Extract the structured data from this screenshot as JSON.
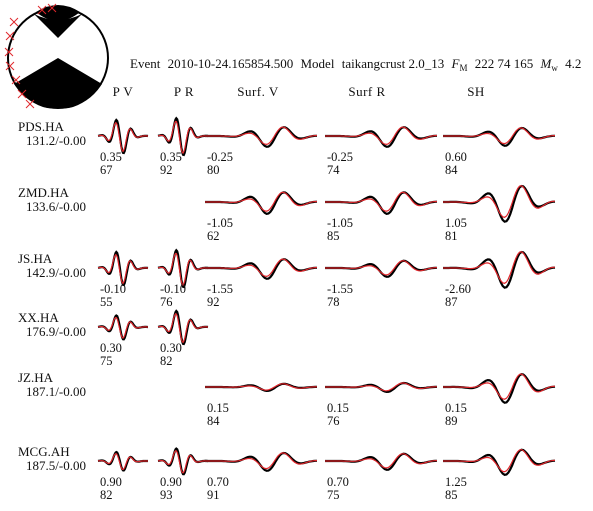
{
  "header": {
    "event_label": "Event",
    "event_id": "2010-10-24.165854.500",
    "model_label": "Model",
    "model_name": "taikangcrust 2.0_13",
    "fm_symbol": "F",
    "fm_sub": "M",
    "fm_values": "222 74 165",
    "mw_symbol": "M",
    "mw_sub": "w",
    "mw_value": "4.2"
  },
  "colors": {
    "observed": "#000000",
    "synthetic": "#e0262b",
    "axis": "#888888",
    "beachball_fill": "#000000",
    "station_marker": "#e0262b"
  },
  "chart_data": {
    "type": "line",
    "title": "Event 2010-10-24.165854.500 Model taikangcrust 2.0_13 FM 222 74 165 Mw 4.2",
    "xlabel": "",
    "ylabel": "",
    "grid": false,
    "legend": "none",
    "components": [
      "P V",
      "P R",
      "Surf. V",
      "Surf R",
      "SH"
    ],
    "series": [
      {
        "name": "observed",
        "color": "#000000"
      },
      {
        "name": "synthetic",
        "color": "#e0262b"
      }
    ],
    "stations": [
      {
        "name": "PDS.HA",
        "info": "131.2/-0.00",
        "windows": [
          {
            "comp": "P V",
            "present": true,
            "shift": "0.35",
            "cc": "67",
            "amp": 0.9,
            "style": "p"
          },
          {
            "comp": "P R",
            "present": true,
            "shift": "0.35",
            "cc": "92",
            "amp": 1.0,
            "style": "p"
          },
          {
            "comp": "Surf. V",
            "present": true,
            "shift": "-0.25",
            "cc": "80",
            "amp": 0.55,
            "style": "s"
          },
          {
            "comp": "Surf R",
            "present": true,
            "shift": "-0.25",
            "cc": "74",
            "amp": 0.55,
            "style": "s"
          },
          {
            "comp": "SH",
            "present": true,
            "shift": "0.60",
            "cc": "84",
            "amp": 0.5,
            "style": "s"
          }
        ]
      },
      {
        "name": "ZMD.HA",
        "info": "133.6/-0.00",
        "windows": [
          {
            "comp": "P V",
            "present": false
          },
          {
            "comp": "P R",
            "present": false
          },
          {
            "comp": "Surf. V",
            "present": true,
            "shift": "-1.05",
            "cc": "62",
            "amp": 0.6,
            "style": "s"
          },
          {
            "comp": "Surf R",
            "present": true,
            "shift": "-1.05",
            "cc": "85",
            "amp": 0.6,
            "style": "s"
          },
          {
            "comp": "SH",
            "present": true,
            "shift": "1.05",
            "cc": "81",
            "amp": 1.0,
            "style": "s"
          }
        ]
      },
      {
        "name": "JS.HA",
        "info": "142.9/-0.00",
        "windows": [
          {
            "comp": "P V",
            "present": true,
            "shift": "-0.10",
            "cc": "55",
            "amp": 0.9,
            "style": "p"
          },
          {
            "comp": "P R",
            "present": true,
            "shift": "-0.10",
            "cc": "76",
            "amp": 1.0,
            "style": "p"
          },
          {
            "comp": "Surf. V",
            "present": true,
            "shift": "-1.55",
            "cc": "92",
            "amp": 0.55,
            "style": "s"
          },
          {
            "comp": "Surf R",
            "present": true,
            "shift": "-1.55",
            "cc": "78",
            "amp": 0.45,
            "style": "s"
          },
          {
            "comp": "SH",
            "present": true,
            "shift": "-2.60",
            "cc": "87",
            "amp": 1.0,
            "style": "s"
          }
        ]
      },
      {
        "name": "XX.HA",
        "info": "176.9/-0.00",
        "windows": [
          {
            "comp": "P V",
            "present": true,
            "shift": "0.30",
            "cc": "75",
            "amp": 0.65,
            "style": "p"
          },
          {
            "comp": "P R",
            "present": true,
            "shift": "0.30",
            "cc": "82",
            "amp": 0.9,
            "style": "p"
          },
          {
            "comp": "Surf. V",
            "present": false
          },
          {
            "comp": "Surf R",
            "present": false
          },
          {
            "comp": "SH",
            "present": false
          }
        ]
      },
      {
        "name": "JZ.HA",
        "info": "187.1/-0.00",
        "windows": [
          {
            "comp": "P V",
            "present": false
          },
          {
            "comp": "P R",
            "present": false
          },
          {
            "comp": "Surf. V",
            "present": true,
            "shift": "0.15",
            "cc": "84",
            "amp": 0.2,
            "style": "s"
          },
          {
            "comp": "Surf R",
            "present": true,
            "shift": "0.15",
            "cc": "76",
            "amp": 0.25,
            "style": "s"
          },
          {
            "comp": "SH",
            "present": true,
            "shift": "0.15",
            "cc": "89",
            "amp": 0.8,
            "style": "s"
          }
        ]
      },
      {
        "name": "MCG.AH",
        "info": "187.5/-0.00",
        "windows": [
          {
            "comp": "P V",
            "present": true,
            "shift": "0.90",
            "cc": "82",
            "amp": 0.5,
            "style": "p"
          },
          {
            "comp": "P R",
            "present": true,
            "shift": "0.90",
            "cc": "93",
            "amp": 0.7,
            "style": "p"
          },
          {
            "comp": "Surf. V",
            "present": true,
            "shift": "0.70",
            "cc": "91",
            "amp": 0.5,
            "style": "s"
          },
          {
            "comp": "Surf R",
            "present": true,
            "shift": "0.70",
            "cc": "75",
            "amp": 0.45,
            "style": "s"
          },
          {
            "comp": "SH",
            "present": true,
            "shift": "1.25",
            "cc": "85",
            "amp": 0.7,
            "style": "s"
          }
        ]
      }
    ]
  }
}
